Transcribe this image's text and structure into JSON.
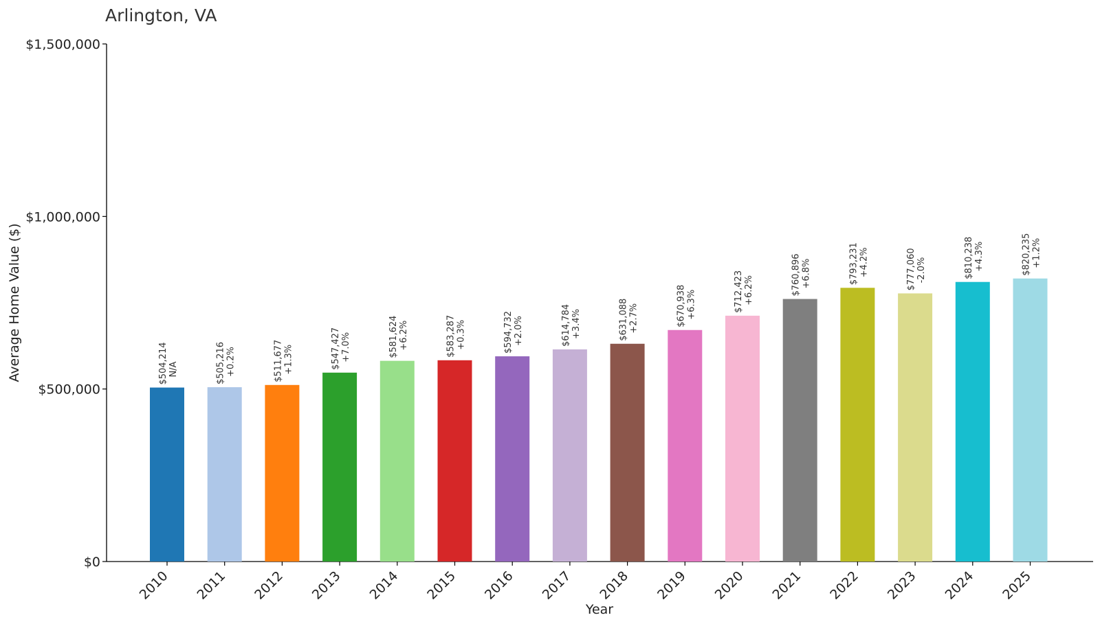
{
  "chart_data": {
    "type": "bar",
    "title": "Arlington, VA",
    "xlabel": "Year",
    "ylabel": "Average Home Value ($)",
    "ylim": [
      0,
      1500000
    ],
    "yticks": [
      0,
      500000,
      1000000,
      1500000
    ],
    "ytick_labels": [
      "$0",
      "$500,000",
      "$1,000,000",
      "$1,500,000"
    ],
    "grid": false,
    "categories": [
      "2010",
      "2011",
      "2012",
      "2013",
      "2014",
      "2015",
      "2016",
      "2017",
      "2018",
      "2019",
      "2020",
      "2021",
      "2022",
      "2023",
      "2024",
      "2025"
    ],
    "values": [
      504214,
      505216,
      511677,
      547427,
      581624,
      583287,
      594732,
      614784,
      631088,
      670938,
      712423,
      760896,
      793231,
      777060,
      810238,
      820235
    ],
    "value_labels": [
      "$504,214",
      "$505,216",
      "$511,677",
      "$547,427",
      "$581,624",
      "$583,287",
      "$594,732",
      "$614,784",
      "$631,088",
      "$670,938",
      "$712,423",
      "$760,896",
      "$793,231",
      "$777,060",
      "$810,238",
      "$820,235"
    ],
    "change_labels": [
      "N/A",
      "+0.2%",
      "+1.3%",
      "+7.0%",
      "+6.2%",
      "+0.3%",
      "+2.0%",
      "+3.4%",
      "+2.7%",
      "+6.3%",
      "+6.2%",
      "+6.8%",
      "+4.2%",
      "-2.0%",
      "+4.3%",
      "+1.2%"
    ],
    "colors": [
      "#1f77b4",
      "#aec7e8",
      "#ff7f0e",
      "#2ca02c",
      "#98df8a",
      "#d62728",
      "#9467bd",
      "#c5b0d5",
      "#8c564b",
      "#e377c2",
      "#f7b6d2",
      "#7f7f7f",
      "#bcbd22",
      "#dbdb8d",
      "#17becf",
      "#9edae5"
    ]
  }
}
